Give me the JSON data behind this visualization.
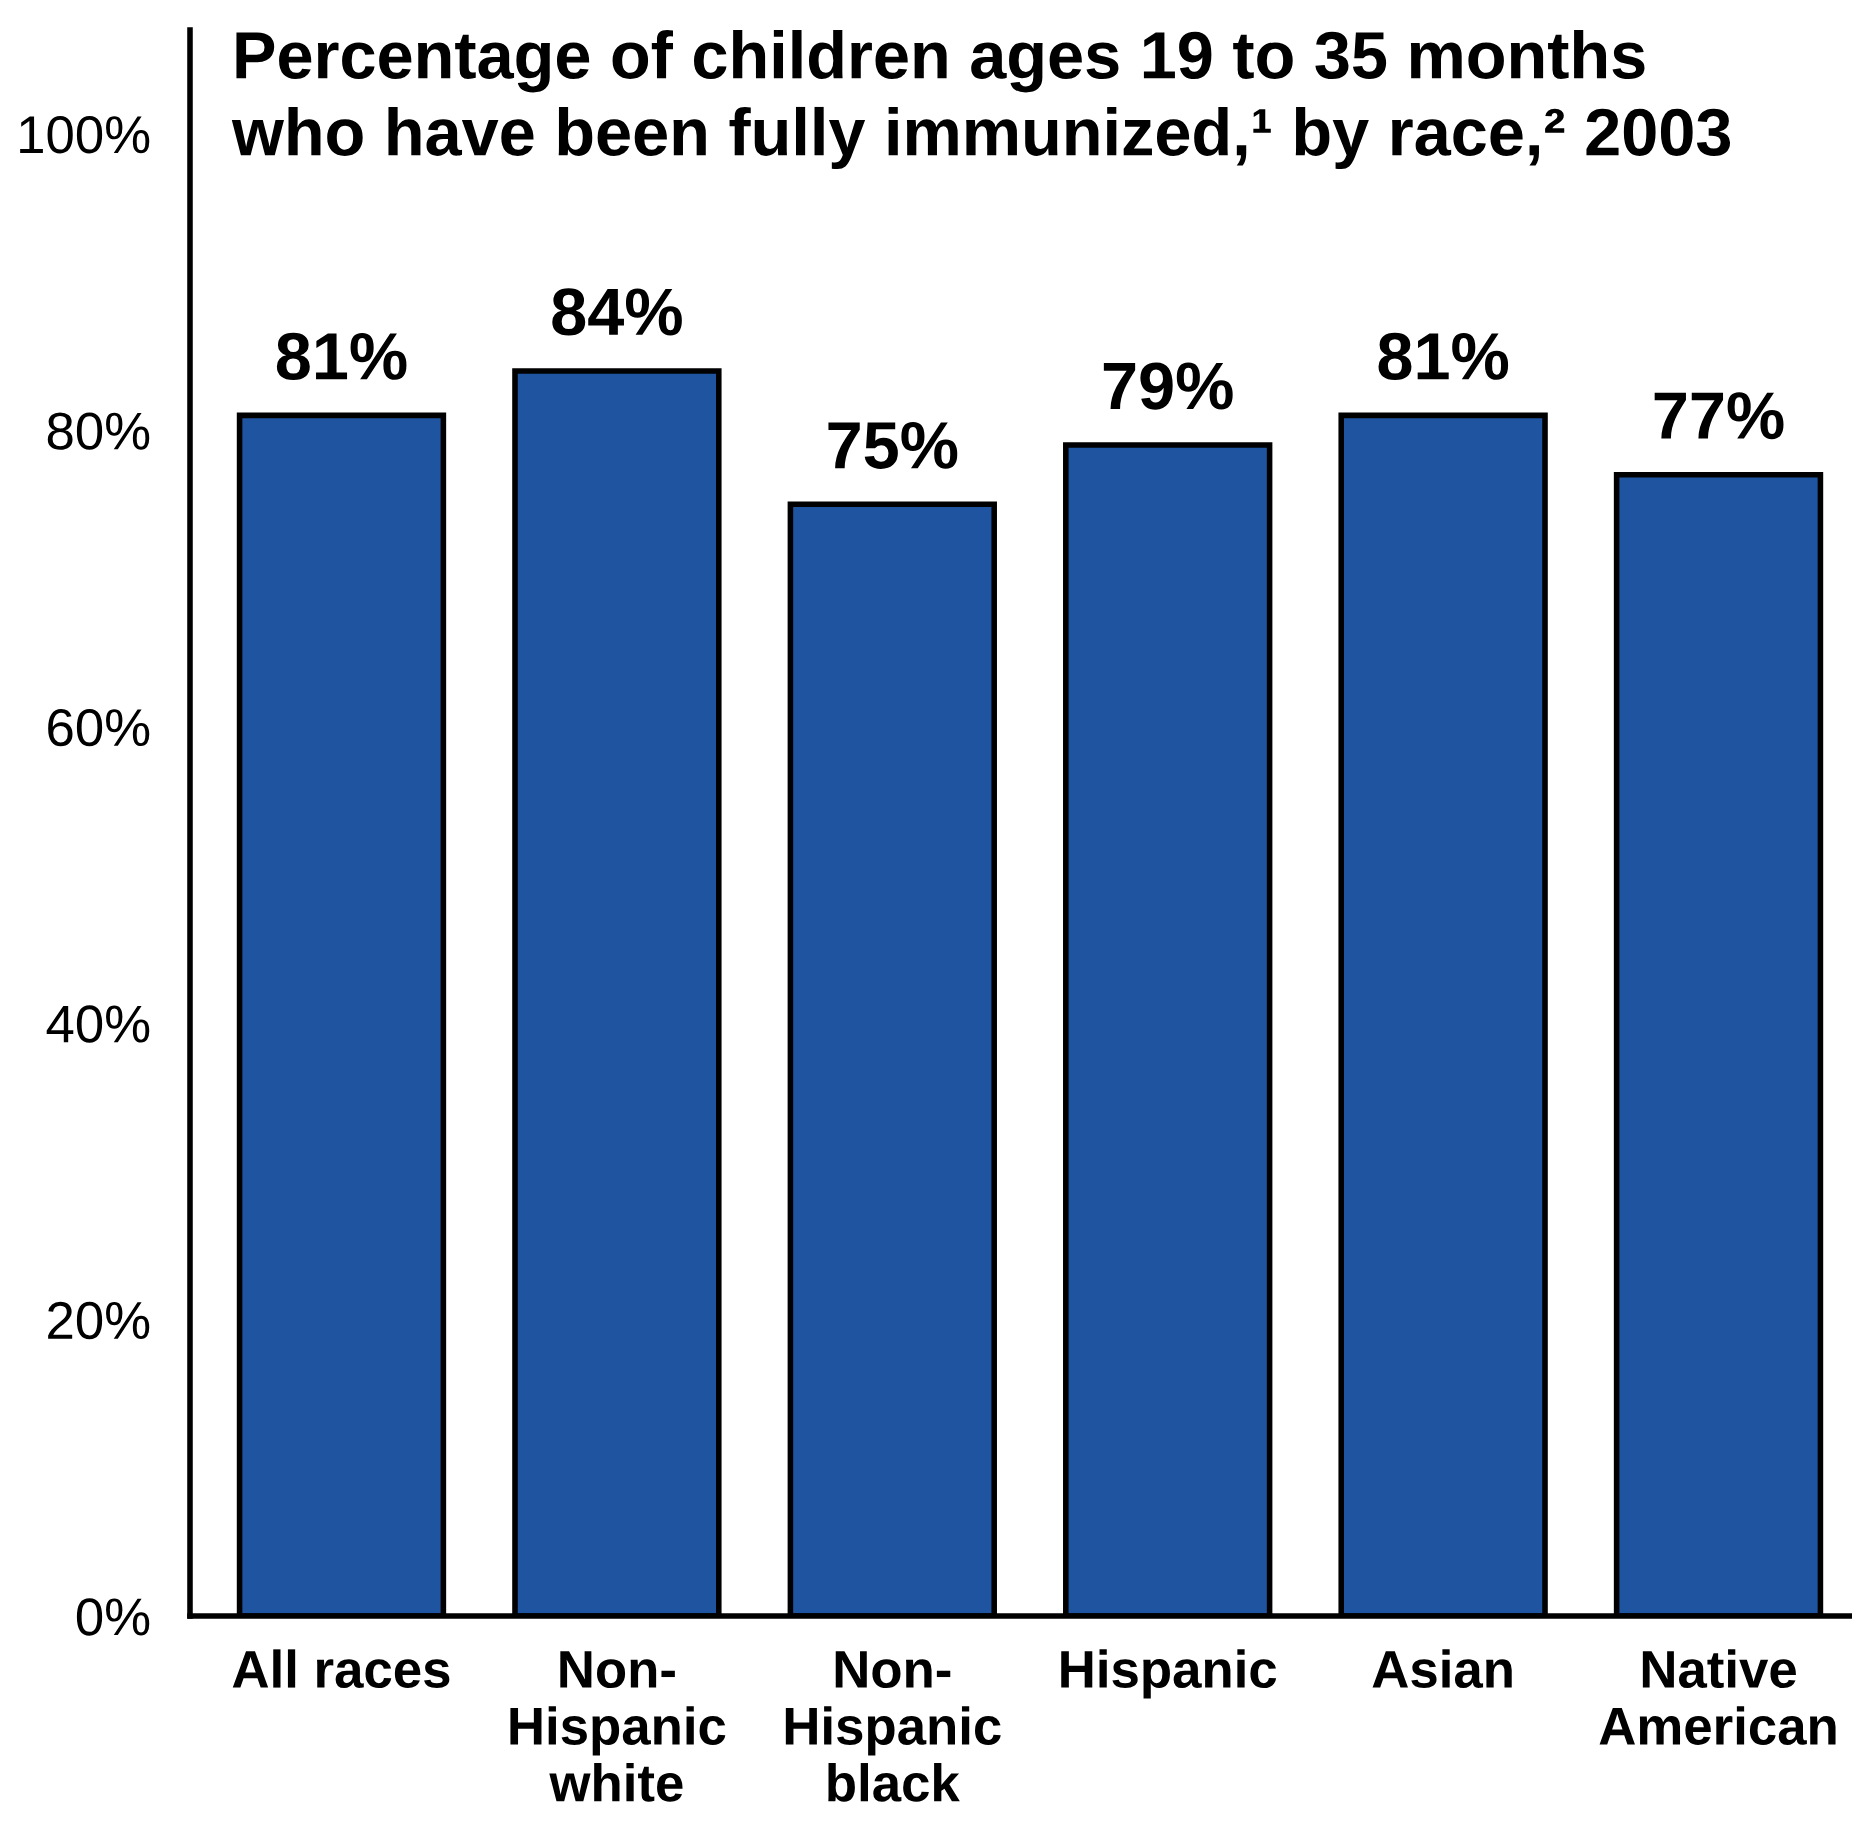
{
  "chart_data": {
    "type": "bar",
    "title": "Percentage of children ages 19 to 35 months\nwho have been fully immunized,¹ by race,² 2003",
    "categories": [
      "All races",
      "Non-\nHispanic\nwhite",
      "Non-\nHispanic\nblack",
      "Hispanic",
      "Asian",
      "Native\nAmerican"
    ],
    "values": [
      81,
      84,
      75,
      79,
      81,
      77
    ],
    "color": "#1f55a0",
    "value_labels": [
      "81%",
      "84%",
      "75%",
      "79%",
      "81%",
      "77%"
    ],
    "ylim": [
      0,
      107
    ],
    "yticks": [
      {
        "value": 0,
        "label": "0%"
      },
      {
        "value": 20,
        "label": "20%"
      },
      {
        "value": 40,
        "label": "40%"
      },
      {
        "value": 60,
        "label": "60%"
      },
      {
        "value": 80,
        "label": "80%"
      },
      {
        "value": 100,
        "label": "100%"
      }
    ],
    "grid": false,
    "legend": false
  }
}
